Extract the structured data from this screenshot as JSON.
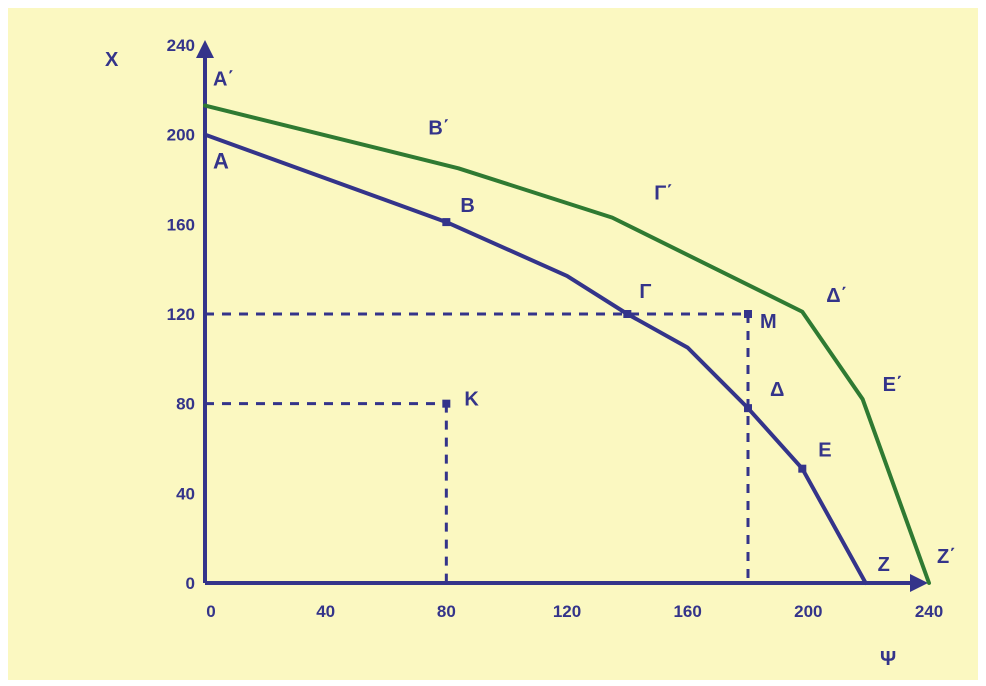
{
  "chart_data": {
    "type": "line",
    "title": "",
    "xlabel": "Ψ",
    "ylabel": "X",
    "xlim": [
      0,
      240
    ],
    "ylim": [
      0,
      240
    ],
    "x_ticks": [
      0,
      40,
      80,
      120,
      160,
      200,
      240
    ],
    "y_ticks": [
      0,
      40,
      80,
      120,
      160,
      200,
      240
    ],
    "grid": false,
    "series": [
      {
        "color": "#34348a",
        "x": [
          0,
          80,
          120,
          140,
          160,
          180,
          198,
          219
        ],
        "y": [
          200,
          161,
          137,
          120,
          105,
          78,
          51,
          0
        ]
      },
      {
        "color": "#2f7a32",
        "x": [
          0,
          84,
          135,
          198,
          218,
          240
        ],
        "y": [
          213,
          185,
          163,
          121,
          82,
          0
        ]
      }
    ],
    "marked_points": [
      {
        "label": "B",
        "x": 80,
        "y": 161
      },
      {
        "label": "Γ",
        "x": 140,
        "y": 120
      },
      {
        "label": "Δ",
        "x": 180,
        "y": 78
      },
      {
        "label": "Ε",
        "x": 198,
        "y": 51
      },
      {
        "label": "Μ",
        "x": 180,
        "y": 120
      },
      {
        "label": "Κ",
        "x": 80,
        "y": 80
      }
    ],
    "point_labels": [
      {
        "text": "Α",
        "x": 0,
        "y": 200
      },
      {
        "text": "Β",
        "x": 80,
        "y": 161
      },
      {
        "text": "Γ",
        "x": 140,
        "y": 120
      },
      {
        "text": "Δ",
        "x": 180,
        "y": 78
      },
      {
        "text": "Ε",
        "x": 198,
        "y": 51
      },
      {
        "text": "Ζ",
        "x": 219,
        "y": 0
      },
      {
        "text": "Α΄",
        "x": 0,
        "y": 213
      },
      {
        "text": "Β΄",
        "x": 84,
        "y": 185
      },
      {
        "text": "Γ΄",
        "x": 135,
        "y": 163
      },
      {
        "text": "Δ΄",
        "x": 198,
        "y": 121
      },
      {
        "text": "Ε΄",
        "x": 218,
        "y": 82
      },
      {
        "text": "Ζ΄",
        "x": 240,
        "y": 0
      },
      {
        "text": "Μ",
        "x": 180,
        "y": 120
      },
      {
        "text": "Κ",
        "x": 80,
        "y": 80
      }
    ],
    "dashed_guides": [
      {
        "from": [
          0,
          120
        ],
        "to": [
          180,
          120
        ]
      },
      {
        "from": [
          180,
          120
        ],
        "to": [
          180,
          0
        ]
      },
      {
        "from": [
          0,
          80
        ],
        "to": [
          80,
          80
        ]
      },
      {
        "from": [
          80,
          80
        ],
        "to": [
          80,
          0
        ]
      }
    ],
    "colors": {
      "background": "#fbf8c1",
      "axis": "#34348a",
      "text": "#34348a"
    }
  }
}
